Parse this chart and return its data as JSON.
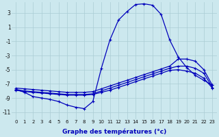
{
  "xlabel": "Graphe des températures (°c)",
  "background_color": "#cce8ee",
  "grid_color": "#aaccd4",
  "line_color": "#0000bb",
  "xlim": [
    0,
    23
  ],
  "ylim": [
    -11,
    4
  ],
  "yticks": [
    -11,
    -9,
    -7,
    -5,
    -3,
    -1,
    1,
    3
  ],
  "xticks": [
    0,
    1,
    2,
    3,
    4,
    5,
    6,
    7,
    8,
    9,
    10,
    11,
    12,
    13,
    14,
    15,
    16,
    17,
    18,
    19,
    20,
    21,
    22,
    23
  ],
  "hours": [
    0,
    1,
    2,
    3,
    4,
    5,
    6,
    7,
    8,
    9,
    10,
    11,
    12,
    13,
    14,
    15,
    16,
    17,
    18,
    19,
    20,
    21,
    22,
    23
  ],
  "line_temp": [
    -7.8,
    -8.2,
    -8.8,
    -9.0,
    -9.2,
    -9.5,
    -10.0,
    -10.3,
    -10.5,
    -9.5,
    -4.8,
    -0.8,
    2.0,
    3.2,
    4.2,
    4.3,
    4.1,
    2.8,
    -0.8,
    -3.2,
    -4.7,
    -5.8,
    -6.5,
    -7.2
  ],
  "line_a": [
    -7.8,
    -8.0,
    -8.1,
    -8.2,
    -8.3,
    -8.4,
    -8.5,
    -8.5,
    -8.5,
    -8.4,
    -8.0,
    -7.6,
    -7.2,
    -6.8,
    -6.4,
    -6.0,
    -5.6,
    -5.2,
    -4.8,
    -4.5,
    -4.5,
    -4.8,
    -5.5,
    -7.5
  ],
  "line_b": [
    -7.6,
    -7.7,
    -7.8,
    -7.9,
    -8.0,
    -8.1,
    -8.2,
    -8.2,
    -8.2,
    -8.1,
    -7.7,
    -7.3,
    -6.9,
    -6.5,
    -6.1,
    -5.7,
    -5.3,
    -4.9,
    -4.5,
    -3.5,
    -3.5,
    -3.8,
    -5.0,
    -7.2
  ],
  "line_c": [
    -7.9,
    -8.1,
    -8.2,
    -8.3,
    -8.4,
    -8.5,
    -8.6,
    -8.6,
    -8.6,
    -8.5,
    -8.2,
    -7.9,
    -7.5,
    -7.1,
    -6.7,
    -6.3,
    -5.9,
    -5.5,
    -5.1,
    -5.0,
    -5.2,
    -5.5,
    -6.2,
    -7.6
  ]
}
